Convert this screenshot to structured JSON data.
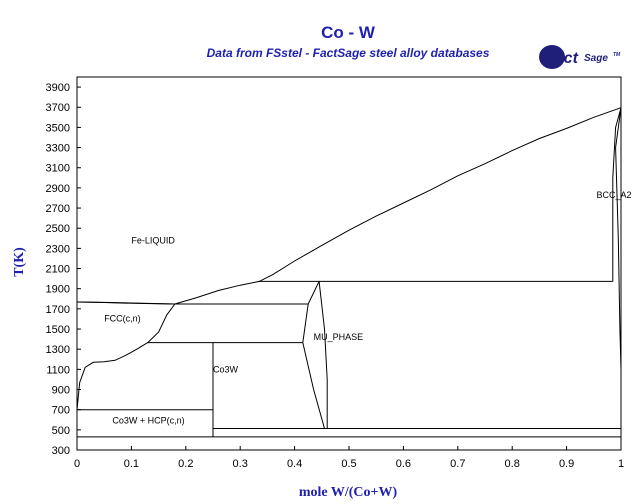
{
  "chart_data": {
    "type": "line",
    "title": "Co - W",
    "subtitle": "Data from FSstel - FactSage steel alloy databases",
    "xlabel": "mole W/(Co+W)",
    "ylabel": "T(K)",
    "xlim": [
      0,
      1
    ],
    "ylim": [
      300,
      4000
    ],
    "x_ticks": [
      "0",
      "0.1",
      "0.2",
      "0.3",
      "0.4",
      "0.5",
      "0.6",
      "0.7",
      "0.8",
      "0.9",
      "1"
    ],
    "y_ticks": [
      "300",
      "500",
      "700",
      "900",
      "1100",
      "1300",
      "1500",
      "1700",
      "1900",
      "2100",
      "2300",
      "2500",
      "2700",
      "2900",
      "3100",
      "3300",
      "3500",
      "3700",
      "3900"
    ],
    "grid": false,
    "legend": "none",
    "logo": {
      "main": "Fact",
      "super": "Sage",
      "mark": "TM"
    },
    "region_labels": [
      {
        "name": "region-fe-liquid",
        "text": "Fe-LIQUID",
        "x": 0.1,
        "y": 2350
      },
      {
        "name": "region-fcc",
        "text": "FCC(c,n)",
        "x": 0.05,
        "y": 1575
      },
      {
        "name": "region-co3w",
        "text": "Co3W",
        "x": 0.25,
        "y": 1070
      },
      {
        "name": "region-mu-phase",
        "text": "MU_PHASE",
        "x": 0.435,
        "y": 1390
      },
      {
        "name": "region-co3w-hcp",
        "text": "Co3W + HCP(c,n)",
        "x": 0.065,
        "y": 565
      },
      {
        "name": "region-bcc",
        "text": "BCC_A2",
        "x": 0.955,
        "y": 2800
      }
    ],
    "series": [
      {
        "id": "liquidus-co-rich",
        "points": [
          [
            0,
            1768
          ],
          [
            0.05,
            1764
          ],
          [
            0.1,
            1758
          ],
          [
            0.15,
            1752
          ],
          [
            0.18,
            1748
          ]
        ]
      },
      {
        "id": "liquidus-w-rich",
        "points": [
          [
            0.18,
            1748
          ],
          [
            0.22,
            1812
          ],
          [
            0.26,
            1882
          ],
          [
            0.3,
            1935
          ],
          [
            0.335,
            1972
          ],
          [
            0.36,
            2040
          ],
          [
            0.4,
            2175
          ],
          [
            0.45,
            2330
          ],
          [
            0.5,
            2480
          ],
          [
            0.55,
            2620
          ],
          [
            0.6,
            2750
          ],
          [
            0.65,
            2880
          ],
          [
            0.7,
            3020
          ],
          [
            0.75,
            3140
          ],
          [
            0.8,
            3270
          ],
          [
            0.85,
            3390
          ],
          [
            0.9,
            3490
          ],
          [
            0.95,
            3600
          ],
          [
            1.0,
            3695
          ]
        ]
      },
      {
        "id": "fcc-solidus",
        "points": [
          [
            0,
            1768
          ],
          [
            0.05,
            1763
          ],
          [
            0.1,
            1755
          ],
          [
            0.15,
            1750
          ],
          [
            0.18,
            1748
          ]
        ]
      },
      {
        "id": "fcc-solvus-w-rich",
        "points": [
          [
            0.18,
            1748
          ],
          [
            0.165,
            1640
          ],
          [
            0.15,
            1470
          ],
          [
            0.13,
            1365
          ]
        ]
      },
      {
        "id": "fcc-hcp-boundary",
        "points": [
          [
            0,
            700
          ],
          [
            0.005,
            970
          ],
          [
            0.015,
            1120
          ],
          [
            0.03,
            1170
          ],
          [
            0.05,
            1175
          ],
          [
            0.07,
            1190
          ],
          [
            0.09,
            1240
          ],
          [
            0.11,
            1300
          ],
          [
            0.13,
            1365
          ]
        ]
      },
      {
        "id": "peritectic-1748K",
        "points": [
          [
            0.165,
            1748
          ],
          [
            0.425,
            1748
          ]
        ]
      },
      {
        "id": "peritectic-1365K",
        "points": [
          [
            0.13,
            1365
          ],
          [
            0.415,
            1365
          ]
        ]
      },
      {
        "id": "eutectic-1972K",
        "points": [
          [
            0.335,
            1972
          ],
          [
            0.985,
            1972
          ]
        ]
      },
      {
        "id": "eutectoid-700K",
        "points": [
          [
            0,
            700
          ],
          [
            0.25,
            700
          ]
        ]
      },
      {
        "id": "co3w-line",
        "points": [
          [
            0.25,
            430
          ],
          [
            0.25,
            1365
          ]
        ]
      },
      {
        "id": "isotherm-513K",
        "points": [
          [
            0.25,
            513
          ],
          [
            1.0,
            513
          ]
        ]
      },
      {
        "id": "isotherm-430K",
        "points": [
          [
            0,
            430
          ],
          [
            1.0,
            430
          ]
        ]
      },
      {
        "id": "mu-phase-left",
        "points": [
          [
            0.445,
            1972
          ],
          [
            0.425,
            1748
          ],
          [
            0.415,
            1365
          ],
          [
            0.435,
            900
          ],
          [
            0.455,
            513
          ]
        ]
      },
      {
        "id": "mu-phase-right",
        "points": [
          [
            0.445,
            1972
          ],
          [
            0.455,
            1500
          ],
          [
            0.46,
            1000
          ],
          [
            0.46,
            513
          ]
        ]
      },
      {
        "id": "bcc-solvus",
        "points": [
          [
            0.985,
            1972
          ],
          [
            0.985,
            3000
          ],
          [
            0.99,
            3500
          ],
          [
            1.0,
            3695
          ]
        ]
      },
      {
        "id": "bcc-solvus-right",
        "points": [
          [
            1.0,
            3695
          ],
          [
            0.99,
            3300
          ],
          [
            0.995,
            2400
          ],
          [
            0.998,
            1500
          ],
          [
            1.0,
            1100
          ]
        ]
      }
    ]
  }
}
